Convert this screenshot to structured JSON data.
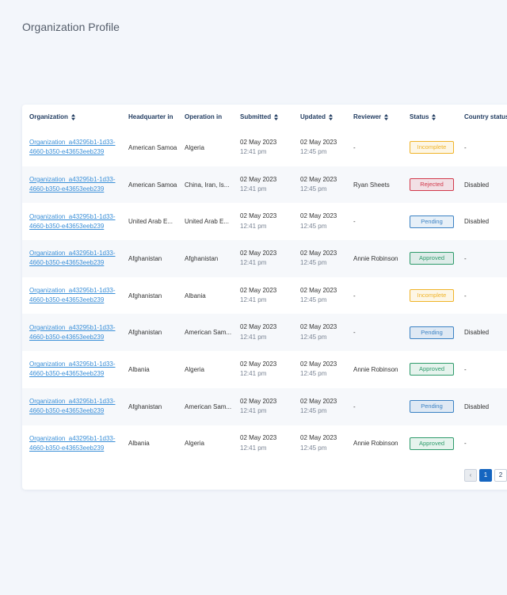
{
  "header": {
    "title": "Organization Profile"
  },
  "table": {
    "columns": [
      {
        "label": "Organization",
        "sortable": true
      },
      {
        "label": "Headquarter in",
        "sortable": false
      },
      {
        "label": "Operation in",
        "sortable": false
      },
      {
        "label": "Submitted",
        "sortable": true
      },
      {
        "label": "Updated",
        "sortable": true
      },
      {
        "label": "Reviewer",
        "sortable": true
      },
      {
        "label": "Status",
        "sortable": true
      },
      {
        "label": "Country status",
        "sortable": false
      }
    ],
    "rows": [
      {
        "org": [
          "Organization_a43295b1-1d33-",
          "4660-b350-e43653eeb239"
        ],
        "hq": "American Samoa",
        "op": "Algeria",
        "submitted": [
          "02 May 2023",
          "12:41 pm"
        ],
        "updated": [
          "02 May 2023",
          "12:45 pm"
        ],
        "reviewer": "-",
        "status": {
          "label": "Incomplete",
          "color": "#f0b429"
        },
        "country": "-"
      },
      {
        "org": [
          "Organization_a43295b1-1d33-",
          "4660-b350-e43653eeb239"
        ],
        "hq": "American Samoa",
        "op": "China, Iran, Is...",
        "submitted": [
          "02 May 2023",
          "12:41 pm"
        ],
        "updated": [
          "02 May 2023",
          "12:45 pm"
        ],
        "reviewer": "Ryan Sheets",
        "status": {
          "label": "Rejected",
          "color": "#d23a4c"
        },
        "country": "Disabled"
      },
      {
        "org": [
          "Organization_a43295b1-1d33-",
          "4660-b350-e43653eeb239"
        ],
        "hq": "United Arab E...",
        "op": "United Arab E...",
        "submitted": [
          "02 May 2023",
          "12:41 pm"
        ],
        "updated": [
          "02 May 2023",
          "12:45 pm"
        ],
        "reviewer": "-",
        "status": {
          "label": "Pending",
          "color": "#3b82c4"
        },
        "country": "Disabled"
      },
      {
        "org": [
          "Organization_a43295b1-1d33-",
          "4660-b350-e43653eeb239"
        ],
        "hq": "Afghanistan",
        "op": "Afghanistan",
        "submitted": [
          "02 May 2023",
          "12:41 pm"
        ],
        "updated": [
          "02 May 2023",
          "12:45 pm"
        ],
        "reviewer": "Annie Robinson",
        "status": {
          "label": "Approved",
          "color": "#2e9b6b"
        },
        "country": "-"
      },
      {
        "org": [
          "Organization_a43295b1-1d33-",
          "4660-b350-e43653eeb239"
        ],
        "hq": "Afghanistan",
        "op": "Albania",
        "submitted": [
          "02 May 2023",
          "12:41 pm"
        ],
        "updated": [
          "02 May 2023",
          "12:45 pm"
        ],
        "reviewer": "-",
        "status": {
          "label": "Incomplete",
          "color": "#f0b429"
        },
        "country": "-"
      },
      {
        "org": [
          "Organization_a43295b1-1d33-",
          "4660-b350-e43653eeb239"
        ],
        "hq": "Afghanistan",
        "op": "American Sam...",
        "submitted": [
          "02 May 2023",
          "12:41 pm"
        ],
        "updated": [
          "02 May 2023",
          "12:45 pm"
        ],
        "reviewer": "-",
        "status": {
          "label": "Pending",
          "color": "#3b82c4"
        },
        "country": "Disabled"
      },
      {
        "org": [
          "Organization_a43295b1-1d33-",
          "4660-b350-e43653eeb239"
        ],
        "hq": "Albania",
        "op": "Algeria",
        "submitted": [
          "02 May 2023",
          "12:41 pm"
        ],
        "updated": [
          "02 May 2023",
          "12:45 pm"
        ],
        "reviewer": "Annie Robinson",
        "status": {
          "label": "Approved",
          "color": "#2e9b6b"
        },
        "country": "-"
      },
      {
        "org": [
          "Organization_a43295b1-1d33-",
          "4660-b350-e43653eeb239"
        ],
        "hq": "Afghanistan",
        "op": "American Sam...",
        "submitted": [
          "02 May 2023",
          "12:41 pm"
        ],
        "updated": [
          "02 May 2023",
          "12:45 pm"
        ],
        "reviewer": "-",
        "status": {
          "label": "Pending",
          "color": "#3b82c4"
        },
        "country": "Disabled"
      },
      {
        "org": [
          "Organization_a43295b1-1d33-",
          "4660-b350-e43653eeb239"
        ],
        "hq": "Albania",
        "op": "Algeria",
        "submitted": [
          "02 May 2023",
          "12:41 pm"
        ],
        "updated": [
          "02 May 2023",
          "12:45 pm"
        ],
        "reviewer": "Annie Robinson",
        "status": {
          "label": "Approved",
          "color": "#2e9b6b"
        },
        "country": "-"
      }
    ]
  },
  "pagination": {
    "pages": [
      1,
      2
    ],
    "current": 1
  }
}
